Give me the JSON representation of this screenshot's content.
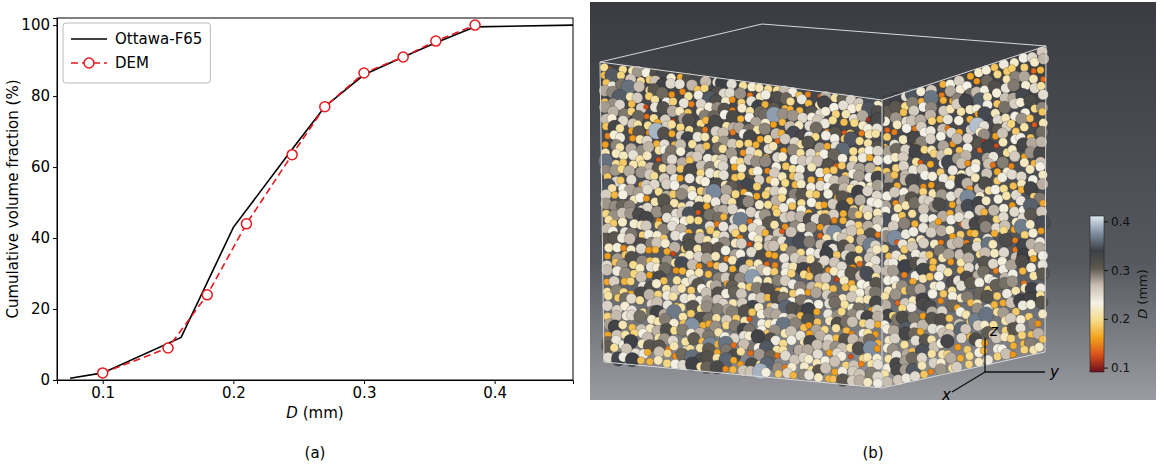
{
  "chart_data": [
    {
      "type": "line",
      "panel_label": "(a)",
      "x_label": "D (mm)",
      "y_label": "Cumulative volume fraction (%)",
      "xlim": [
        0.065,
        0.46
      ],
      "ylim": [
        0,
        102
      ],
      "xticks": [
        0.1,
        0.2,
        0.3,
        0.4
      ],
      "yticks": [
        0,
        20,
        40,
        60,
        80,
        100
      ],
      "grid": false,
      "legend": "upper left",
      "series": [
        {
          "name": "Ottawa-F65",
          "color": "#000000",
          "line_style": "solid",
          "marker": "none",
          "x": [
            0.075,
            0.1,
            0.16,
            0.2,
            0.245,
            0.27,
            0.3,
            0.33,
            0.355,
            0.385,
            0.46
          ],
          "values": [
            0.5,
            2,
            12,
            43,
            65,
            77,
            86,
            91,
            95,
            99.5,
            100
          ]
        },
        {
          "name": "DEM",
          "color": "#e8191e",
          "line_style": "dashed",
          "marker": "circle",
          "x": [
            0.1,
            0.15,
            0.18,
            0.21,
            0.245,
            0.27,
            0.3,
            0.33,
            0.355,
            0.385
          ],
          "values": [
            2,
            9,
            24,
            44,
            63.5,
            77,
            86.5,
            91,
            95.5,
            100
          ]
        }
      ]
    },
    {
      "type": "image",
      "panel_label": "(b)",
      "axis_labels": [
        "x",
        "y",
        "z"
      ],
      "colorbar": {
        "label": "D (mm)",
        "range": [
          0.092,
          0.412
        ],
        "ticks": [
          0.1,
          0.2,
          0.3,
          0.4
        ],
        "colors": [
          "#6e0f1f",
          "#d9521a",
          "#f2a31c",
          "#f7dd8c",
          "#f4f1e6",
          "#c9beb0",
          "#5c574f",
          "#3c3f45",
          "#7e8ea0",
          "#dfe9f2"
        ]
      }
    }
  ]
}
